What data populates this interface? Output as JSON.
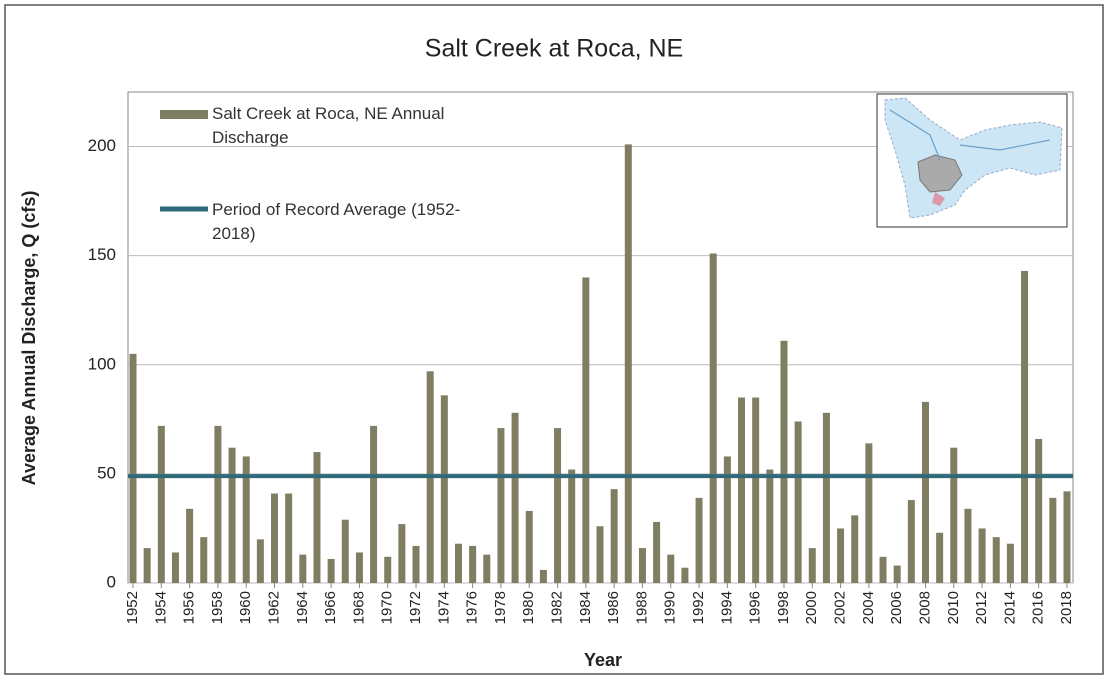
{
  "chart_data": {
    "type": "bar",
    "title": "Salt Creek at Roca, NE",
    "x_label": "Year",
    "y_label": "Average Annual Discharge, Q (cfs)",
    "x": [
      1952,
      1953,
      1954,
      1955,
      1956,
      1957,
      1958,
      1959,
      1960,
      1961,
      1962,
      1963,
      1964,
      1965,
      1966,
      1967,
      1968,
      1969,
      1970,
      1971,
      1972,
      1973,
      1974,
      1975,
      1976,
      1977,
      1978,
      1979,
      1980,
      1981,
      1982,
      1983,
      1984,
      1985,
      1986,
      1987,
      1988,
      1989,
      1990,
      1991,
      1992,
      1993,
      1994,
      1995,
      1996,
      1997,
      1998,
      1999,
      2000,
      2001,
      2002,
      2003,
      2004,
      2005,
      2006,
      2007,
      2008,
      2009,
      2010,
      2011,
      2012,
      2013,
      2014,
      2015,
      2016,
      2017,
      2018
    ],
    "series": [
      {
        "name": "Salt Creek at Roca, NE Annual Discharge",
        "color": "#7f7d62",
        "values": [
          105,
          16,
          72,
          14,
          34,
          21,
          72,
          62,
          58,
          20,
          41,
          41,
          13,
          60,
          11,
          29,
          14,
          72,
          12,
          27,
          17,
          97,
          86,
          18,
          17,
          13,
          71,
          78,
          33,
          6,
          71,
          52,
          140,
          26,
          43,
          201,
          16,
          28,
          13,
          7,
          39,
          151,
          58,
          85,
          85,
          52,
          111,
          74,
          16,
          78,
          25,
          31,
          64,
          12,
          8,
          38,
          83,
          23,
          62,
          34,
          25,
          21,
          18,
          143,
          66,
          39,
          42
        ]
      }
    ],
    "reference_line": {
      "name": "Period of Record Average (1952-2018)",
      "value": 49,
      "color": "#2e6a7a"
    },
    "xlim": [
      1952,
      2018
    ],
    "xticks": [
      1952,
      1954,
      1956,
      1958,
      1960,
      1962,
      1964,
      1966,
      1968,
      1970,
      1972,
      1974,
      1976,
      1978,
      1980,
      1982,
      1984,
      1986,
      1988,
      1990,
      1992,
      1994,
      1996,
      1998,
      2000,
      2002,
      2004,
      2006,
      2008,
      2010,
      2012,
      2014,
      2016,
      2018
    ],
    "ylim": [
      0,
      225
    ],
    "yticks": [
      0,
      50,
      100,
      150,
      200
    ],
    "grid": true
  }
}
